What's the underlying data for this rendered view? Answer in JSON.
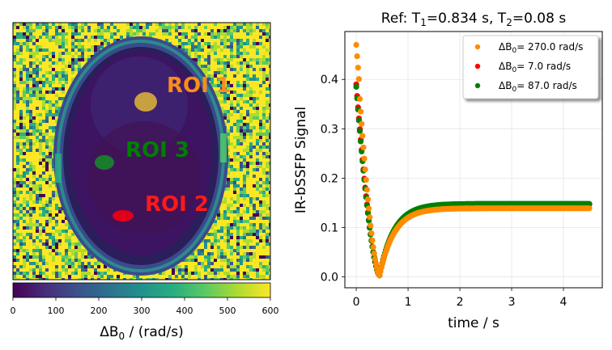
{
  "chart_data": [
    {
      "type": "heatmap",
      "description_text": {
        "roi_labels": [
          {
            "name": "ROI 1",
            "color": "#ff8c1a"
          },
          {
            "name": "ROI 3",
            "color": "#007f00"
          },
          {
            "name": "ROI 2",
            "color": "#ff1a1a"
          }
        ]
      },
      "colorbar": {
        "label_main": "ΔB",
        "label_sub": "0",
        "label_rest": " / (rad/s)",
        "min": 0,
        "max": 600,
        "ticks": [
          "0",
          "100",
          "200",
          "300",
          "400",
          "500",
          "600"
        ],
        "colormap": "viridis"
      },
      "roi_colors": {
        "roi1": "#c9a040",
        "roi2": "#e0001a",
        "roi3": "#1a7a2e"
      }
    },
    {
      "type": "scatter",
      "title_parts": [
        "Ref: T",
        "1",
        "=0.834 s, T",
        "2",
        "=0.08 s"
      ],
      "xlabel": "time / s",
      "ylabel": "IR-bSSFP Signal",
      "xlim": [
        -0.22,
        4.75
      ],
      "ylim": [
        -0.022,
        0.497
      ],
      "xticks": [
        "0",
        "1",
        "2",
        "3",
        "4"
      ],
      "yticks": [
        "0.0",
        "0.1",
        "0.2",
        "0.3",
        "0.4"
      ],
      "grid": true,
      "legend_placement": "top-right",
      "x_range": [
        0.0,
        4.5
      ],
      "series": [
        {
          "name": "ΔB0= 270.0 rad/s",
          "legend_prefix": "ΔB",
          "legend_sub": "0",
          "legend_rest": "= 270.0 rad/s",
          "color": "#ff8c00",
          "s0": 0.47,
          "min_x": 0.45,
          "min_y": 0.003,
          "plateau": 0.139
        },
        {
          "name": "ΔB0= 7.0 rad/s",
          "legend_prefix": "ΔB",
          "legend_sub": "0",
          "legend_rest": "= 7.0 rad/s",
          "color": "#ff0000",
          "s0": 0.39,
          "min_x": 0.45,
          "min_y": 0.003,
          "plateau": 0.147
        },
        {
          "name": "ΔB0= 87.0 rad/s",
          "legend_prefix": "ΔB",
          "legend_sub": "0",
          "legend_rest": "= 87.0 rad/s",
          "color": "#008000",
          "s0": 0.385,
          "min_x": 0.45,
          "min_y": 0.003,
          "plateau": 0.148
        }
      ]
    }
  ]
}
